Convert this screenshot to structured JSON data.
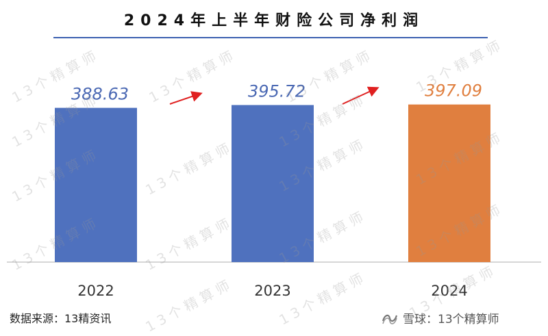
{
  "chart_data": {
    "type": "bar",
    "title": "2024年上半年财险公司净利润",
    "categories": [
      "2022",
      "2023",
      "2024"
    ],
    "values": [
      388.63,
      395.72,
      397.09
    ],
    "value_labels": [
      "388.63",
      "395.72",
      "397.09"
    ],
    "bar_colors": [
      "#4f71be",
      "#4f71be",
      "#e07f3f"
    ],
    "label_colors": [
      "#4a68b3",
      "#4a68b3",
      "#e07f3f"
    ],
    "arrow_color": "#e02020",
    "ylim": [
      0,
      400
    ],
    "grid": false,
    "legend": "none"
  },
  "source_text": "数据来源：13精资讯",
  "brand": {
    "icon": "xueqiu-logo-icon",
    "text": "雪球：13个精算师"
  },
  "watermark": "13个精算师"
}
